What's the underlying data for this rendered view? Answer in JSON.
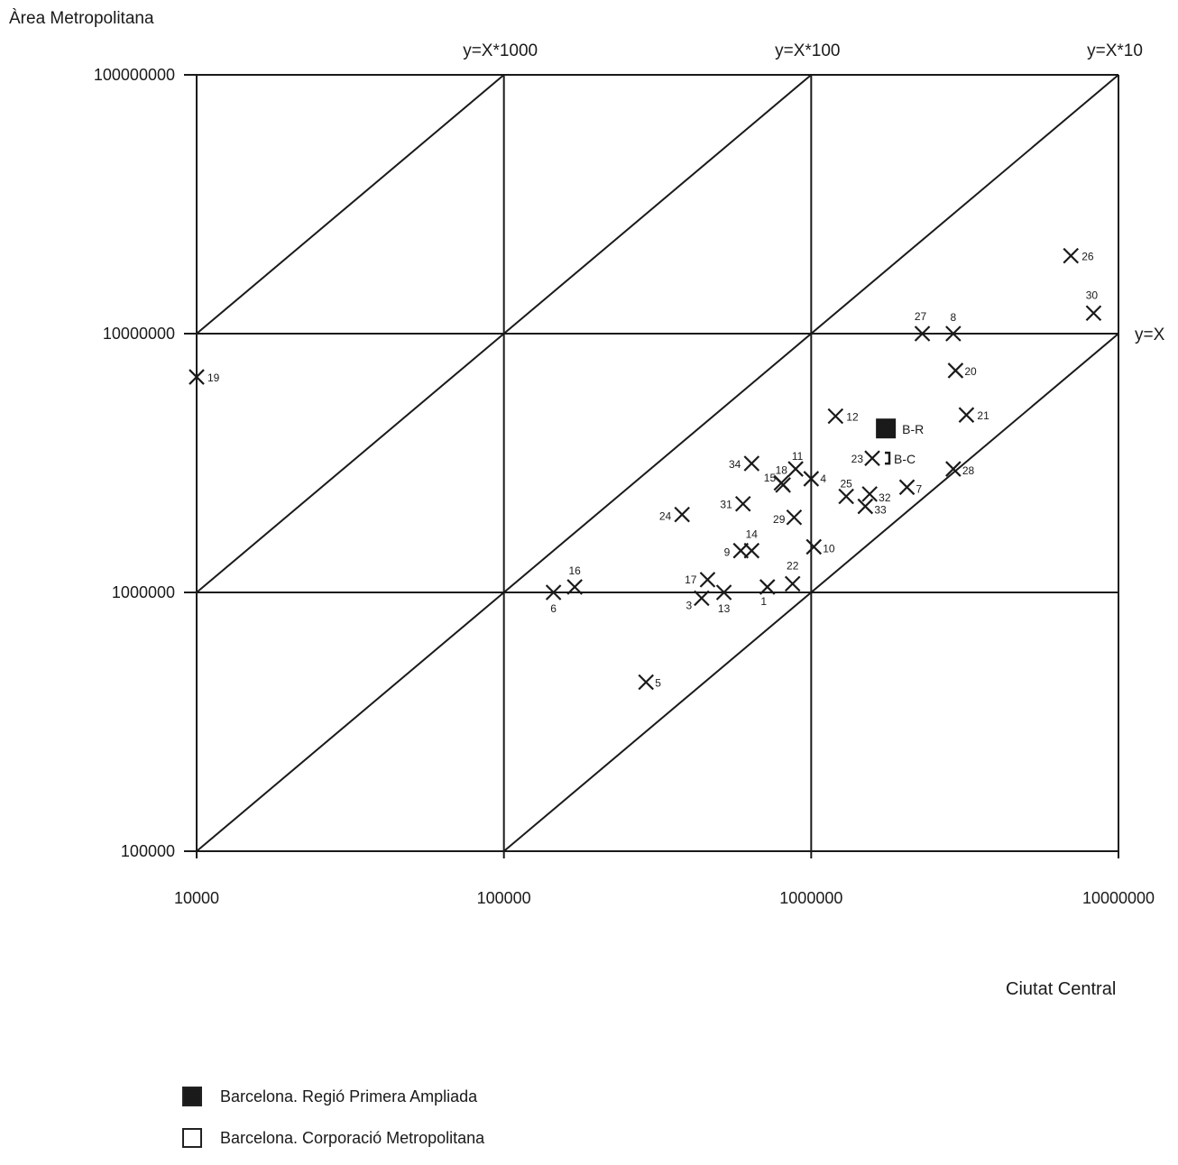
{
  "chart_data": {
    "type": "scatter",
    "xlabel": "Ciutat Central",
    "ylabel": "Àrea Metropolitana",
    "xscale": "log",
    "yscale": "log",
    "xlim": [
      10000,
      10000000
    ],
    "ylim": [
      100000,
      100000000
    ],
    "x_ticks": [
      "10000",
      "100000",
      "1000000",
      "10000000"
    ],
    "y_ticks": [
      "100000",
      "1000000",
      "10000000",
      "100000000"
    ],
    "grid": true,
    "reference_lines": [
      {
        "label": "y=X*1000",
        "factor": 1000
      },
      {
        "label": "y=X*100",
        "factor": 100
      },
      {
        "label": "y=X*10",
        "factor": 10
      },
      {
        "label": "y=X",
        "factor": 1
      }
    ],
    "points": [
      {
        "label": "1",
        "x": 720000,
        "y": 1050000
      },
      {
        "label": "3",
        "x": 440000,
        "y": 950000
      },
      {
        "label": "4",
        "x": 1000000,
        "y": 2750000
      },
      {
        "label": "5",
        "x": 290000,
        "y": 450000
      },
      {
        "label": "6",
        "x": 145000,
        "y": 1000000
      },
      {
        "label": "7",
        "x": 2050000,
        "y": 2550000
      },
      {
        "label": "8",
        "x": 2900000,
        "y": 10000000
      },
      {
        "label": "9",
        "x": 590000,
        "y": 1450000
      },
      {
        "label": "10",
        "x": 1020000,
        "y": 1500000
      },
      {
        "label": "11",
        "x": 890000,
        "y": 3000000
      },
      {
        "label": "12",
        "x": 1200000,
        "y": 4800000
      },
      {
        "label": "13",
        "x": 520000,
        "y": 1000000
      },
      {
        "label": "14",
        "x": 640000,
        "y": 1450000
      },
      {
        "label": "15",
        "x": 810000,
        "y": 2600000
      },
      {
        "label": "16",
        "x": 170000,
        "y": 1050000
      },
      {
        "label": "17",
        "x": 460000,
        "y": 1120000
      },
      {
        "label": "18",
        "x": 800000,
        "y": 2650000
      },
      {
        "label": "19",
        "x": 10000,
        "y": 6800000
      },
      {
        "label": "20",
        "x": 2950000,
        "y": 7200000
      },
      {
        "label": "21",
        "x": 3200000,
        "y": 4850000
      },
      {
        "label": "22",
        "x": 870000,
        "y": 1080000
      },
      {
        "label": "23",
        "x": 1580000,
        "y": 3300000
      },
      {
        "label": "24",
        "x": 380000,
        "y": 2000000
      },
      {
        "label": "25",
        "x": 1300000,
        "y": 2350000
      },
      {
        "label": "26",
        "x": 7000000,
        "y": 20000000
      },
      {
        "label": "27",
        "x": 2300000,
        "y": 10000000
      },
      {
        "label": "28",
        "x": 2900000,
        "y": 3000000
      },
      {
        "label": "29",
        "x": 880000,
        "y": 1950000
      },
      {
        "label": "30",
        "x": 8300000,
        "y": 12000000
      },
      {
        "label": "31",
        "x": 600000,
        "y": 2200000
      },
      {
        "label": "32",
        "x": 1550000,
        "y": 2400000
      },
      {
        "label": "33",
        "x": 1500000,
        "y": 2150000
      },
      {
        "label": "34",
        "x": 640000,
        "y": 3150000
      }
    ],
    "highlight": {
      "label": "B-R",
      "x": 1750000,
      "y": 4300000
    },
    "bracket_label": "B-C",
    "legend": [
      {
        "label": "Barcelona. Regió Primera Ampliada",
        "fill": "#1a1a1a"
      },
      {
        "label": "Barcelona. Corporació Metropolitana",
        "fill": "#ffffff"
      }
    ]
  }
}
